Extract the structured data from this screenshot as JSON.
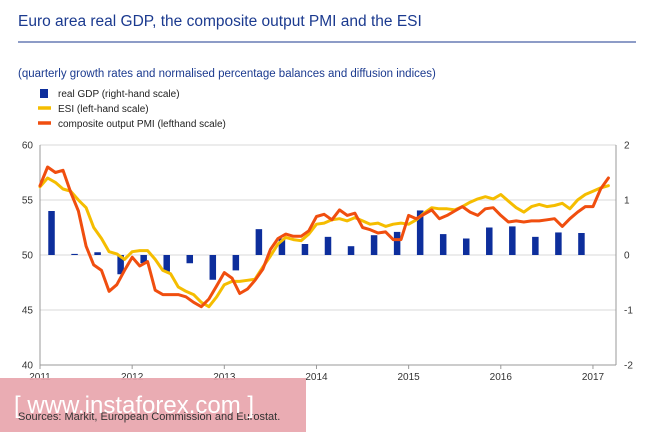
{
  "title": "Euro area real GDP, the composite output PMI and the ESI",
  "subtitle": "(quarterly growth rates and normalised percentage balances and diffusion indices)",
  "source": "Sources: Markit, European Commission and Eurostat.",
  "watermark": "[ www.instaforex.com ]",
  "colors": {
    "title": "#1b3a8f",
    "gdp": "#0d2e9c",
    "esi": "#f5bd00",
    "pmi": "#f04e0f",
    "watermark_band": "#e8a5ad"
  },
  "chart_data": {
    "type": "bar+line",
    "legend": [
      {
        "key": "gdp",
        "label": "real GDP (right-hand scale)",
        "marker": "square"
      },
      {
        "key": "esi",
        "label": "ESI (left-hand scale)",
        "marker": "line"
      },
      {
        "key": "pmi",
        "label": "composite output PMI (lefthand scale)",
        "marker": "line"
      }
    ],
    "x_ticks": [
      "2011",
      "2012",
      "2013",
      "2014",
      "2015",
      "2016",
      "2017"
    ],
    "x_range": [
      2011.0,
      2017.25
    ],
    "y_left": {
      "ticks": [
        "40",
        "45",
        "50",
        "55",
        "60"
      ],
      "range": [
        40,
        60
      ]
    },
    "y_right": {
      "ticks": [
        "-2",
        "-1",
        "0",
        "1",
        "2"
      ],
      "range": [
        -2,
        2
      ]
    },
    "series": [
      {
        "name": "real GDP (right-hand scale)",
        "type": "bar",
        "axis": "right",
        "x": [
          2011.125,
          2011.375,
          2011.625,
          2011.875,
          2012.125,
          2012.375,
          2012.625,
          2012.875,
          2013.125,
          2013.375,
          2013.625,
          2013.875,
          2014.125,
          2014.375,
          2014.625,
          2014.875,
          2015.125,
          2015.375,
          2015.625,
          2015.875,
          2016.125,
          2016.375,
          2016.625,
          2016.875
        ],
        "values": [
          0.8,
          0.02,
          0.05,
          -0.35,
          -0.15,
          -0.3,
          -0.15,
          -0.45,
          -0.28,
          0.47,
          0.3,
          0.2,
          0.33,
          0.16,
          0.36,
          0.42,
          0.81,
          0.38,
          0.3,
          0.5,
          0.52,
          0.33,
          0.41,
          0.4
        ]
      },
      {
        "name": "ESI (left-hand scale)",
        "type": "line",
        "axis": "left",
        "x": [
          2011.0,
          2011.083,
          2011.167,
          2011.25,
          2011.333,
          2011.417,
          2011.5,
          2011.583,
          2011.667,
          2011.75,
          2011.833,
          2011.917,
          2012.0,
          2012.083,
          2012.167,
          2012.25,
          2012.333,
          2012.417,
          2012.5,
          2012.583,
          2012.667,
          2012.75,
          2012.833,
          2012.917,
          2013.0,
          2013.083,
          2013.167,
          2013.25,
          2013.333,
          2013.417,
          2013.5,
          2013.583,
          2013.667,
          2013.75,
          2013.833,
          2013.917,
          2014.0,
          2014.083,
          2014.167,
          2014.25,
          2014.333,
          2014.417,
          2014.5,
          2014.583,
          2014.667,
          2014.75,
          2014.833,
          2014.917,
          2015.0,
          2015.083,
          2015.167,
          2015.25,
          2015.333,
          2015.417,
          2015.5,
          2015.583,
          2015.667,
          2015.75,
          2015.833,
          2015.917,
          2016.0,
          2016.083,
          2016.167,
          2016.25,
          2016.333,
          2016.417,
          2016.5,
          2016.583,
          2016.667,
          2016.75,
          2016.833,
          2016.917,
          2017.0,
          2017.083,
          2017.167
        ],
        "values": [
          56.2,
          57.0,
          56.6,
          56.0,
          55.8,
          55.0,
          54.3,
          52.5,
          51.5,
          50.3,
          50.1,
          49.6,
          50.3,
          50.4,
          50.4,
          49.6,
          48.6,
          48.3,
          47.1,
          46.7,
          46.4,
          45.7,
          45.3,
          46.2,
          47.3,
          47.6,
          47.6,
          47.7,
          47.8,
          48.9,
          49.9,
          51.0,
          51.6,
          51.4,
          51.3,
          51.9,
          52.8,
          52.9,
          53.2,
          53.3,
          53.1,
          53.4,
          53.1,
          52.8,
          52.9,
          52.6,
          52.8,
          52.9,
          52.8,
          53.2,
          53.8,
          54.3,
          54.2,
          54.2,
          54.1,
          54.4,
          54.8,
          55.1,
          55.3,
          55.1,
          55.5,
          54.9,
          54.3,
          53.9,
          54.4,
          54.6,
          54.4,
          54.5,
          54.7,
          54.2,
          55.0,
          55.5,
          55.8,
          56.1,
          56.3
        ]
      },
      {
        "name": "composite output PMI (lefthand scale)",
        "type": "line",
        "axis": "left",
        "x": [
          2011.0,
          2011.083,
          2011.167,
          2011.25,
          2011.333,
          2011.417,
          2011.5,
          2011.583,
          2011.667,
          2011.75,
          2011.833,
          2011.917,
          2012.0,
          2012.083,
          2012.167,
          2012.25,
          2012.333,
          2012.417,
          2012.5,
          2012.583,
          2012.667,
          2012.75,
          2012.833,
          2012.917,
          2013.0,
          2013.083,
          2013.167,
          2013.25,
          2013.333,
          2013.417,
          2013.5,
          2013.583,
          2013.667,
          2013.75,
          2013.833,
          2013.917,
          2014.0,
          2014.083,
          2014.167,
          2014.25,
          2014.333,
          2014.417,
          2014.5,
          2014.583,
          2014.667,
          2014.75,
          2014.833,
          2014.917,
          2015.0,
          2015.083,
          2015.167,
          2015.25,
          2015.333,
          2015.417,
          2015.5,
          2015.583,
          2015.667,
          2015.75,
          2015.833,
          2015.917,
          2016.0,
          2016.083,
          2016.167,
          2016.25,
          2016.333,
          2016.417,
          2016.5,
          2016.583,
          2016.667,
          2016.75,
          2016.833,
          2016.917,
          2017.0,
          2017.083,
          2017.167
        ],
        "values": [
          56.3,
          58.0,
          57.5,
          57.7,
          55.7,
          54.0,
          50.8,
          49.1,
          48.6,
          46.7,
          47.3,
          48.6,
          49.8,
          49.0,
          49.4,
          46.8,
          46.4,
          46.4,
          46.4,
          46.2,
          45.7,
          45.3,
          46.0,
          47.2,
          48.4,
          47.9,
          46.5,
          46.9,
          47.7,
          48.7,
          50.5,
          51.5,
          51.9,
          51.7,
          51.7,
          52.2,
          53.5,
          53.7,
          53.2,
          54.1,
          53.6,
          53.8,
          52.5,
          52.3,
          52.0,
          52.1,
          51.4,
          51.4,
          53.6,
          53.3,
          53.7,
          54.1,
          53.3,
          53.6,
          54.0,
          54.4,
          53.9,
          53.6,
          54.2,
          54.3,
          53.6,
          53.0,
          53.1,
          53.0,
          53.1,
          53.1,
          53.2,
          53.3,
          52.6,
          53.3,
          53.9,
          54.4,
          54.4,
          56.0,
          57.0
        ]
      }
    ]
  }
}
